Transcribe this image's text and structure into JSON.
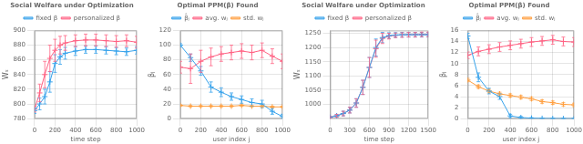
{
  "chart_data": [
    {
      "type": "line",
      "title": "Social Welfare under Optimization",
      "xlabel": "time step",
      "ylabel": "Wₛ",
      "x": [
        0,
        50,
        100,
        150,
        200,
        250,
        300,
        400,
        500,
        600,
        700,
        800,
        900,
        1000
      ],
      "series": [
        {
          "name": "fixed β",
          "values": [
            791,
            800,
            810,
            830,
            855,
            864,
            869,
            872,
            874,
            874,
            873,
            872,
            871,
            873
          ],
          "errors": [
            4,
            8,
            10,
            14,
            12,
            10,
            8,
            6,
            5,
            5,
            5,
            5,
            5,
            5
          ]
        },
        {
          "name": "personalized β",
          "values": [
            793,
            815,
            840,
            862,
            873,
            880,
            883,
            886,
            887,
            887,
            886,
            885,
            886,
            884
          ],
          "errors": [
            4,
            12,
            18,
            18,
            15,
            12,
            10,
            8,
            8,
            8,
            8,
            8,
            8,
            8
          ]
        }
      ],
      "xlim": [
        0,
        1000
      ],
      "xticks": [
        0,
        200,
        400,
        600,
        800,
        1000
      ],
      "ylim": [
        780,
        900
      ],
      "yticks": [
        780,
        800,
        820,
        840,
        860,
        880,
        900
      ],
      "grid": true,
      "marker": "plus",
      "line_style": "solid"
    },
    {
      "type": "line",
      "title": "Optimal PPM(β) Found",
      "xlabel": "user index j",
      "ylabel": "βⱼ",
      "x": [
        0,
        100,
        200,
        300,
        400,
        500,
        600,
        700,
        800,
        900,
        1000
      ],
      "series": [
        {
          "name": "β̂ⱼ",
          "values": [
            100,
            83,
            65,
            43,
            36,
            30,
            26,
            22,
            20,
            10,
            3
          ],
          "errors": [
            2,
            5,
            6,
            7,
            6,
            5,
            5,
            5,
            5,
            4,
            3
          ]
        },
        {
          "name": "avg. wⱼ",
          "values": [
            70,
            68,
            78,
            84,
            88,
            90,
            92,
            90,
            93,
            85,
            78
          ],
          "errors": [
            8,
            20,
            15,
            12,
            10,
            10,
            10,
            10,
            10,
            10,
            10
          ]
        },
        {
          "name": "std. wⱼ",
          "values": [
            18,
            17,
            17,
            17,
            17,
            17,
            18,
            17,
            17,
            16,
            16
          ],
          "errors": [
            1,
            1,
            1,
            1,
            1,
            1,
            1,
            1,
            1,
            1,
            1
          ]
        }
      ],
      "xlim": [
        0,
        1000
      ],
      "xticks": [
        0,
        200,
        400,
        600,
        800,
        1000
      ],
      "ylim": [
        0,
        120
      ],
      "yticks": [
        0,
        20,
        40,
        60,
        80,
        100,
        120
      ],
      "grid": true,
      "marker": "plus",
      "line_style": "solid"
    },
    {
      "type": "line",
      "title": "Social Welfare under Optimization",
      "xlabel": "time step",
      "ylabel": "Wₛ",
      "x": [
        0,
        100,
        200,
        300,
        400,
        500,
        600,
        700,
        800,
        900,
        1000,
        1100,
        1200,
        1300,
        1400,
        1500
      ],
      "series": [
        {
          "name": "fixed β",
          "values": [
            955,
            960,
            968,
            980,
            1005,
            1060,
            1130,
            1200,
            1235,
            1242,
            1244,
            1245,
            1245,
            1245,
            1245,
            1245
          ],
          "errors": [
            3,
            5,
            8,
            10,
            15,
            25,
            35,
            30,
            18,
            10,
            8,
            8,
            8,
            8,
            8,
            8
          ]
        },
        {
          "name": "personalized β",
          "values": [
            955,
            960,
            968,
            980,
            1005,
            1060,
            1130,
            1196,
            1232,
            1240,
            1243,
            1244,
            1245,
            1245,
            1246,
            1246
          ],
          "errors": [
            3,
            5,
            8,
            10,
            15,
            25,
            35,
            30,
            18,
            10,
            8,
            8,
            8,
            8,
            8,
            8
          ]
        }
      ],
      "xlim": [
        0,
        1500
      ],
      "xticks": [
        0,
        300,
        600,
        900,
        1200,
        1500
      ],
      "ylim": [
        950,
        1260
      ],
      "yticks": [
        1000,
        1050,
        1100,
        1150,
        1200,
        1250
      ],
      "grid": true,
      "marker": "plus",
      "line_style": "solid"
    },
    {
      "type": "line",
      "title": "Optimal PPM(β) Found",
      "xlabel": "user index j",
      "ylabel": "βⱼ",
      "x": [
        0,
        100,
        200,
        300,
        400,
        500,
        600,
        700,
        800,
        900,
        1000
      ],
      "series": [
        {
          "name": "β̂ⱼ",
          "values": [
            15.0,
            7.5,
            5.0,
            4.0,
            0.5,
            0.2,
            0.1,
            0.05,
            0.02,
            0.01,
            0.01
          ],
          "errors": [
            0.5,
            0.8,
            0.5,
            0.5,
            0.3,
            0.2,
            0.1,
            0.05,
            0.02,
            0.01,
            0.01
          ]
        },
        {
          "name": "avg. wⱼ",
          "values": [
            11.5,
            12.2,
            12.6,
            13.0,
            13.3,
            13.6,
            13.9,
            14.1,
            14.3,
            14.0,
            13.9
          ],
          "errors": [
            0.6,
            0.8,
            0.8,
            0.8,
            0.8,
            0.8,
            0.8,
            0.8,
            0.8,
            0.8,
            0.8
          ]
        },
        {
          "name": "std. wⱼ",
          "values": [
            7.0,
            5.8,
            5.0,
            4.5,
            4.2,
            3.9,
            3.6,
            3.1,
            2.9,
            2.6,
            2.5
          ],
          "errors": [
            0.3,
            0.3,
            0.3,
            0.3,
            0.3,
            0.3,
            0.3,
            0.3,
            0.3,
            0.3,
            0.3
          ]
        }
      ],
      "xlim": [
        0,
        1000
      ],
      "xticks": [
        0,
        200,
        400,
        600,
        800,
        1000
      ],
      "ylim": [
        0,
        16
      ],
      "yticks": [
        0,
        2,
        4,
        6,
        8,
        10,
        12,
        14,
        16
      ],
      "grid": true,
      "marker": "plus",
      "line_style": "solid"
    }
  ]
}
